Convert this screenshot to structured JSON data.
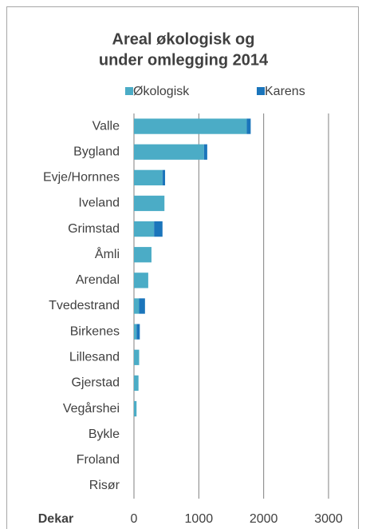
{
  "chart_data": {
    "type": "stacked-bar-horizontal",
    "title": "Areal økologisk og under omlegging 2014",
    "x_label": "Dekar",
    "categories": [
      "Valle",
      "Bygland",
      "Evje/Hornnes",
      "Iveland",
      "Grimstad",
      "Åmli",
      "Arendal",
      "Tvedestrand",
      "Birkenes",
      "Lillesand",
      "Gjerstad",
      "Vegårshei",
      "Bykle",
      "Froland",
      "Risør"
    ],
    "series": [
      {
        "name": "Økologisk",
        "color": "#4bacc6",
        "values": [
          1740,
          1080,
          440,
          470,
          310,
          270,
          220,
          80,
          40,
          80,
          70,
          40,
          0,
          0,
          0
        ]
      },
      {
        "name": "Karens",
        "color": "#1b75bb",
        "values": [
          60,
          50,
          40,
          0,
          130,
          0,
          0,
          90,
          50,
          0,
          0,
          0,
          0,
          0,
          0
        ]
      }
    ],
    "xlim": [
      0,
      3000
    ],
    "xticks": [
      0,
      1000,
      2000,
      3000
    ],
    "grid": true,
    "legend": "top"
  }
}
